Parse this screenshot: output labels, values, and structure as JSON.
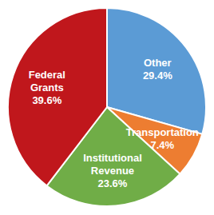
{
  "chart_data": {
    "type": "pie",
    "categories": [
      "Other",
      "Transportation",
      "Institutional Revenue",
      "Federal Grants"
    ],
    "values": [
      29.4,
      7.4,
      23.6,
      39.6
    ],
    "value_labels": [
      "29.4%",
      "7.4%",
      "23.6%",
      "39.6%"
    ],
    "colors": [
      "#5B9BD5",
      "#ED7D31",
      "#70AD47",
      "#C0171C"
    ],
    "data_labels": true
  }
}
